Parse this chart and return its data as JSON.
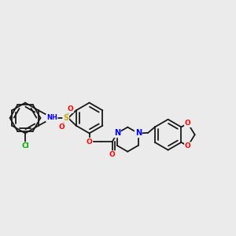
{
  "background_color": "#ebebeb",
  "bond_color": "#1a1a1a",
  "atom_colors": {
    "Cl": "#00aa00",
    "N": "#0000ff",
    "O": "#ff0000",
    "S": "#ccaa00",
    "H": "#000000",
    "C": "#1a1a1a"
  },
  "figsize": [
    3.0,
    3.0
  ],
  "dpi": 100,
  "r_hex": 0.065,
  "lw": 1.3,
  "fontsize": 7.0
}
